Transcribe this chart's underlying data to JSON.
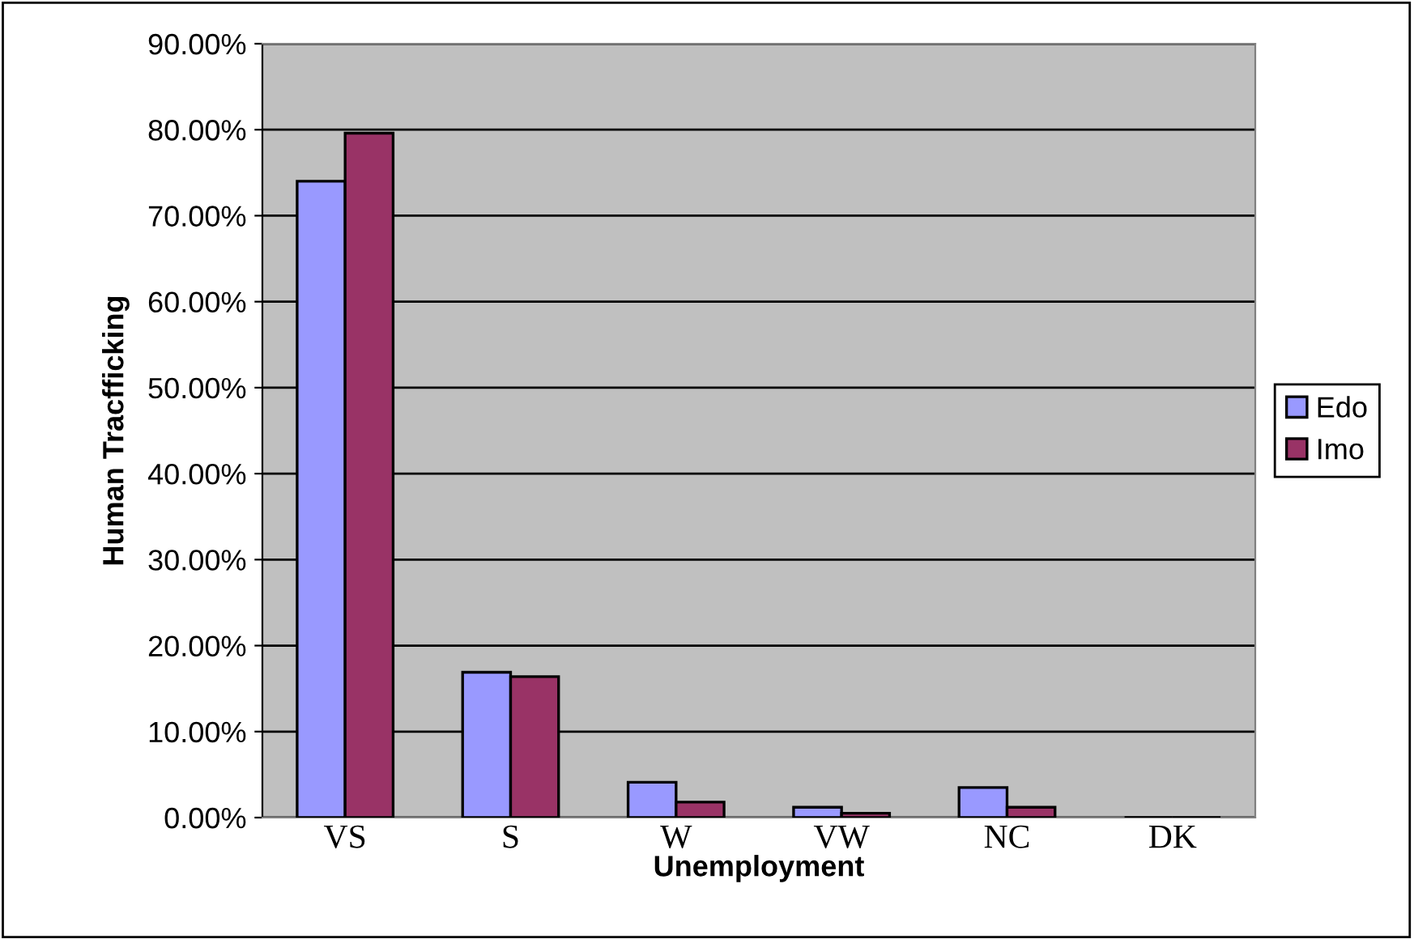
{
  "chart_data": {
    "type": "bar",
    "xlabel": "Unemployment",
    "ylabel": "Human Tracfficking",
    "categories": [
      "VS",
      "S",
      "W",
      "VW",
      "NC",
      "DK"
    ],
    "series": [
      {
        "name": "Edo",
        "color": "#9999ff",
        "values": [
          74.0,
          16.9,
          4.1,
          1.2,
          3.5,
          null
        ]
      },
      {
        "name": "Imo",
        "color": "#993366",
        "values": [
          79.6,
          16.4,
          1.8,
          0.5,
          1.2,
          null
        ]
      }
    ],
    "ylim": [
      0,
      90
    ],
    "yticks": [
      {
        "value": 0,
        "label": "0.00%"
      },
      {
        "value": 10,
        "label": "10.00%"
      },
      {
        "value": 20,
        "label": "20.00%"
      },
      {
        "value": 30,
        "label": "30.00%"
      },
      {
        "value": 40,
        "label": "40.00%"
      },
      {
        "value": 50,
        "label": "50.00%"
      },
      {
        "value": 60,
        "label": "60.00%"
      },
      {
        "value": 70,
        "label": "70.00%"
      },
      {
        "value": 80,
        "label": "80.00%"
      },
      {
        "value": 90,
        "label": "90.00%"
      }
    ],
    "grid": "y",
    "legend": "right"
  }
}
